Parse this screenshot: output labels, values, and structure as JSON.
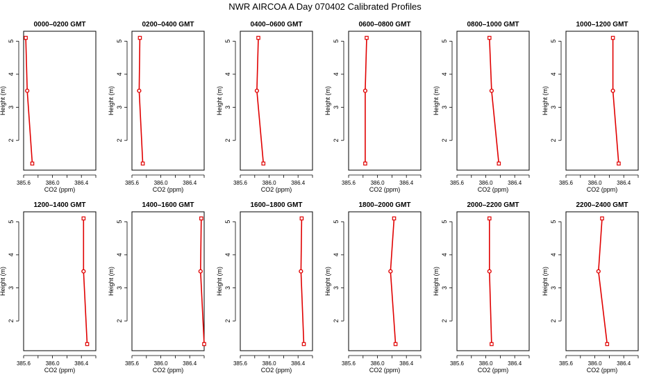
{
  "title": "NWR AIRCOA A  Day 070402  Calibrated Profiles",
  "chart_data": [
    {
      "type": "line",
      "title": "0000–0200 GMT",
      "xlabel": "CO2 (ppm)",
      "ylabel": "Height (m)",
      "xlim": [
        385.6,
        386.6
      ],
      "ylim": [
        1.1,
        5.3
      ],
      "x_ticks": [
        "385.6",
        "386.0",
        "386.4"
      ],
      "y_ticks": [
        "2",
        "3",
        "4",
        "5"
      ],
      "series": [
        {
          "x": [
            385.63,
            385.65,
            385.72
          ],
          "y": [
            5.1,
            3.5,
            1.3
          ]
        }
      ]
    },
    {
      "type": "line",
      "title": "0200–0400 GMT",
      "xlabel": "CO2 (ppm)",
      "ylabel": "Height (m)",
      "xlim": [
        385.6,
        386.6
      ],
      "ylim": [
        1.1,
        5.3
      ],
      "x_ticks": [
        "385.6",
        "386.0",
        "386.4"
      ],
      "y_ticks": [
        "2",
        "3",
        "4",
        "5"
      ],
      "series": [
        {
          "x": [
            385.71,
            385.7,
            385.75
          ],
          "y": [
            5.1,
            3.5,
            1.3
          ]
        }
      ]
    },
    {
      "type": "line",
      "title": "0400–0600 GMT",
      "xlabel": "CO2 (ppm)",
      "ylabel": "Height (m)",
      "xlim": [
        385.6,
        386.6
      ],
      "ylim": [
        1.1,
        5.3
      ],
      "x_ticks": [
        "385.6",
        "386.0",
        "386.4"
      ],
      "y_ticks": [
        "2",
        "3",
        "4",
        "5"
      ],
      "series": [
        {
          "x": [
            385.85,
            385.83,
            385.92
          ],
          "y": [
            5.1,
            3.5,
            1.3
          ]
        }
      ]
    },
    {
      "type": "line",
      "title": "0600–0800 GMT",
      "xlabel": "CO2 (ppm)",
      "ylabel": "Height (m)",
      "xlim": [
        385.6,
        386.6
      ],
      "ylim": [
        1.1,
        5.3
      ],
      "x_ticks": [
        "385.6",
        "386.0",
        "386.4"
      ],
      "y_ticks": [
        "2",
        "3",
        "4",
        "5"
      ],
      "series": [
        {
          "x": [
            385.85,
            385.83,
            385.83
          ],
          "y": [
            5.1,
            3.5,
            1.3
          ]
        }
      ]
    },
    {
      "type": "line",
      "title": "0800–1000 GMT",
      "xlabel": "CO2 (ppm)",
      "ylabel": "Height (m)",
      "xlim": [
        385.6,
        386.6
      ],
      "ylim": [
        1.1,
        5.3
      ],
      "x_ticks": [
        "385.6",
        "386.0",
        "386.4"
      ],
      "y_ticks": [
        "2",
        "3",
        "4",
        "5"
      ],
      "series": [
        {
          "x": [
            386.05,
            386.08,
            386.18
          ],
          "y": [
            5.1,
            3.5,
            1.3
          ]
        }
      ]
    },
    {
      "type": "line",
      "title": "1000–1200 GMT",
      "xlabel": "CO2 (ppm)",
      "ylabel": "Height (m)",
      "xlim": [
        385.6,
        386.6
      ],
      "ylim": [
        1.1,
        5.3
      ],
      "x_ticks": [
        "385.6",
        "386.0",
        "386.4"
      ],
      "y_ticks": [
        "2",
        "3",
        "4",
        "5"
      ],
      "series": [
        {
          "x": [
            386.25,
            386.25,
            386.33
          ],
          "y": [
            5.1,
            3.5,
            1.3
          ]
        }
      ]
    },
    {
      "type": "line",
      "title": "1200–1400 GMT",
      "xlabel": "CO2 (ppm)",
      "ylabel": "Height (m)",
      "xlim": [
        385.6,
        386.6
      ],
      "ylim": [
        1.1,
        5.3
      ],
      "x_ticks": [
        "385.6",
        "386.0",
        "386.4"
      ],
      "y_ticks": [
        "2",
        "3",
        "4",
        "5"
      ],
      "series": [
        {
          "x": [
            386.43,
            386.43,
            386.48
          ],
          "y": [
            5.1,
            3.5,
            1.3
          ]
        }
      ]
    },
    {
      "type": "line",
      "title": "1400–1600 GMT",
      "xlabel": "CO2 (ppm)",
      "ylabel": "Height (m)",
      "xlim": [
        385.6,
        386.6
      ],
      "ylim": [
        1.1,
        5.3
      ],
      "x_ticks": [
        "385.6",
        "386.0",
        "386.4"
      ],
      "y_ticks": [
        "2",
        "3",
        "4",
        "5"
      ],
      "series": [
        {
          "x": [
            386.56,
            386.55,
            386.6
          ],
          "y": [
            5.1,
            3.5,
            1.3
          ]
        }
      ]
    },
    {
      "type": "line",
      "title": "1600–1800 GMT",
      "xlabel": "CO2 (ppm)",
      "ylabel": "Height (m)",
      "xlim": [
        385.6,
        386.6
      ],
      "ylim": [
        1.1,
        5.3
      ],
      "x_ticks": [
        "385.6",
        "386.0",
        "386.4"
      ],
      "y_ticks": [
        "2",
        "3",
        "4",
        "5"
      ],
      "series": [
        {
          "x": [
            386.45,
            386.44,
            386.48
          ],
          "y": [
            5.1,
            3.5,
            1.3
          ]
        }
      ]
    },
    {
      "type": "line",
      "title": "1800–2000 GMT",
      "xlabel": "CO2 (ppm)",
      "ylabel": "Height (m)",
      "xlim": [
        385.6,
        386.6
      ],
      "ylim": [
        1.1,
        5.3
      ],
      "x_ticks": [
        "385.6",
        "386.0",
        "386.4"
      ],
      "y_ticks": [
        "2",
        "3",
        "4",
        "5"
      ],
      "series": [
        {
          "x": [
            386.23,
            386.18,
            386.25
          ],
          "y": [
            5.1,
            3.5,
            1.3
          ]
        }
      ]
    },
    {
      "type": "line",
      "title": "2000–2200 GMT",
      "xlabel": "CO2 (ppm)",
      "ylabel": "Height (m)",
      "xlim": [
        385.6,
        386.6
      ],
      "ylim": [
        1.1,
        5.3
      ],
      "x_ticks": [
        "385.6",
        "386.0",
        "386.4"
      ],
      "y_ticks": [
        "2",
        "3",
        "4",
        "5"
      ],
      "series": [
        {
          "x": [
            386.05,
            386.05,
            386.08
          ],
          "y": [
            5.1,
            3.5,
            1.3
          ]
        }
      ]
    },
    {
      "type": "line",
      "title": "2200–2400 GMT",
      "xlabel": "CO2 (ppm)",
      "ylabel": "Height (m)",
      "xlim": [
        385.6,
        386.6
      ],
      "ylim": [
        1.1,
        5.3
      ],
      "x_ticks": [
        "385.6",
        "386.0",
        "386.4"
      ],
      "y_ticks": [
        "2",
        "3",
        "4",
        "5"
      ],
      "series": [
        {
          "x": [
            386.1,
            386.05,
            386.17
          ],
          "y": [
            5.1,
            3.5,
            1.3
          ]
        }
      ]
    }
  ],
  "colors": {
    "series": "#e00000",
    "axis": "#000000"
  }
}
